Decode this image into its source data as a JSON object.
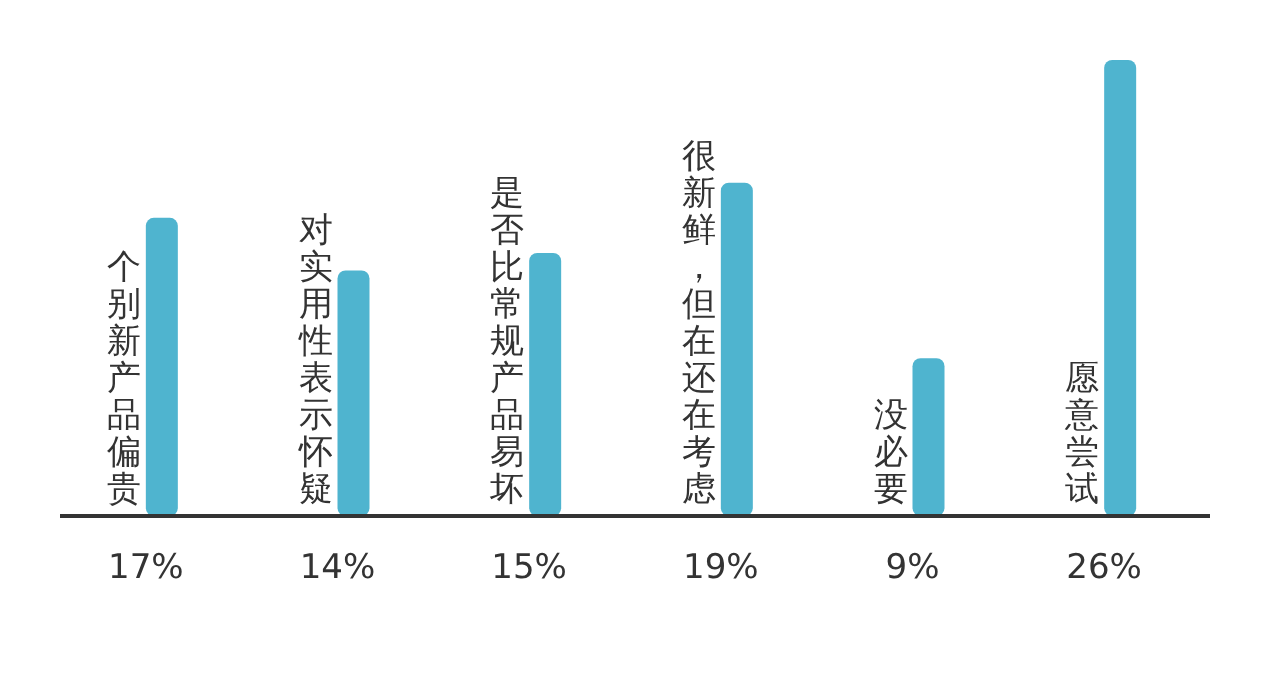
{
  "chart_data": {
    "type": "bar",
    "categories": [
      "个别新产品偏贵",
      "对实用性表示怀疑",
      "是否比常规产品易坏",
      "很新鲜，但在还在考虑",
      "没必要",
      "愿意尝试"
    ],
    "values": [
      17,
      14,
      15,
      19,
      9,
      26
    ],
    "value_labels": [
      "17%",
      "14%",
      "15%",
      "19%",
      "9%",
      "26%"
    ],
    "color": "#4fb4cf",
    "grid": false
  }
}
